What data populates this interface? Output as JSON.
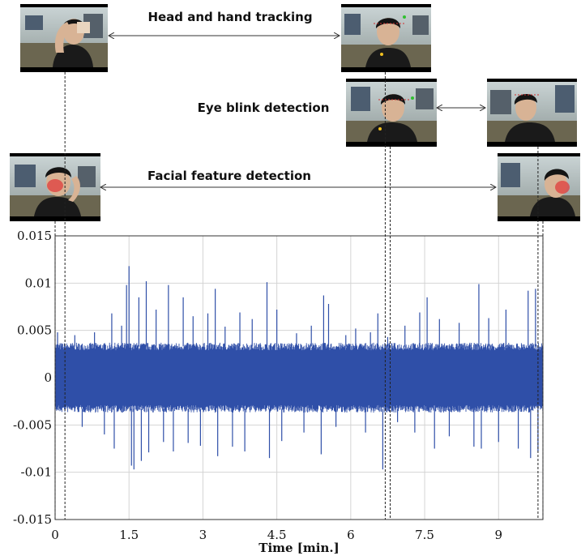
{
  "annotations": [
    {
      "label": "Head and hand tracking",
      "start_min": 0.2,
      "end_min": 6.7
    },
    {
      "label": "Eye blink detection",
      "start_min": 6.8,
      "end_min": 9.8
    },
    {
      "label": "Facial feature detection",
      "start_min": 0.0,
      "end_min": 9.9
    }
  ],
  "chart_data": {
    "type": "line",
    "title": "",
    "xlabel": "Time [min.]",
    "ylabel": "",
    "xlim": [
      0,
      9.9
    ],
    "ylim": [
      -0.015,
      0.015
    ],
    "xticks": [
      0,
      1.5,
      3,
      4.5,
      6,
      7.5,
      9
    ],
    "xtick_labels": [
      "0",
      "1.5",
      "3",
      "4.5",
      "6",
      "7.5",
      "9"
    ],
    "yticks": [
      0.015,
      0.01,
      0.005,
      0,
      -0.005,
      -0.01,
      -0.015
    ],
    "ytick_labels": [
      "0.015",
      "0.01",
      "0.005",
      "0",
      "-0.005",
      "-0.01",
      "-0.015"
    ],
    "grid": true,
    "series_color": "#2f4fa8",
    "series": [
      {
        "baseline_band": [
          -0.0033,
          0.0033
        ],
        "spikes": [
          {
            "x": 0.05,
            "y": 0.0048
          },
          {
            "x": 0.4,
            "y": 0.0045
          },
          {
            "x": 0.55,
            "y": -0.0052
          },
          {
            "x": 0.8,
            "y": 0.0048
          },
          {
            "x": 1.0,
            "y": -0.006
          },
          {
            "x": 1.15,
            "y": 0.0068
          },
          {
            "x": 1.2,
            "y": -0.0075
          },
          {
            "x": 1.35,
            "y": 0.0055
          },
          {
            "x": 1.45,
            "y": 0.0098
          },
          {
            "x": 1.5,
            "y": 0.0118
          },
          {
            "x": 1.55,
            "y": -0.0093
          },
          {
            "x": 1.6,
            "y": -0.0097
          },
          {
            "x": 1.7,
            "y": 0.0085
          },
          {
            "x": 1.75,
            "y": -0.0088
          },
          {
            "x": 1.85,
            "y": 0.0102
          },
          {
            "x": 1.9,
            "y": -0.0079
          },
          {
            "x": 2.05,
            "y": 0.0072
          },
          {
            "x": 2.2,
            "y": -0.0068
          },
          {
            "x": 2.3,
            "y": 0.0098
          },
          {
            "x": 2.4,
            "y": -0.0078
          },
          {
            "x": 2.6,
            "y": 0.0085
          },
          {
            "x": 2.7,
            "y": -0.0069
          },
          {
            "x": 2.8,
            "y": 0.0065
          },
          {
            "x": 2.95,
            "y": -0.0072
          },
          {
            "x": 3.1,
            "y": 0.0068
          },
          {
            "x": 3.25,
            "y": 0.0094
          },
          {
            "x": 3.3,
            "y": -0.0083
          },
          {
            "x": 3.45,
            "y": 0.0054
          },
          {
            "x": 3.6,
            "y": -0.0073
          },
          {
            "x": 3.75,
            "y": 0.0069
          },
          {
            "x": 3.85,
            "y": -0.0078
          },
          {
            "x": 4.0,
            "y": 0.0062
          },
          {
            "x": 4.3,
            "y": 0.0101
          },
          {
            "x": 4.35,
            "y": -0.0085
          },
          {
            "x": 4.5,
            "y": 0.0072
          },
          {
            "x": 4.6,
            "y": -0.0067
          },
          {
            "x": 4.9,
            "y": 0.0047
          },
          {
            "x": 5.05,
            "y": -0.0058
          },
          {
            "x": 5.2,
            "y": 0.0055
          },
          {
            "x": 5.4,
            "y": -0.0081
          },
          {
            "x": 5.45,
            "y": 0.0087
          },
          {
            "x": 5.55,
            "y": 0.0078
          },
          {
            "x": 5.7,
            "y": -0.0052
          },
          {
            "x": 5.9,
            "y": 0.0045
          },
          {
            "x": 6.1,
            "y": 0.0052
          },
          {
            "x": 6.3,
            "y": -0.0058
          },
          {
            "x": 6.4,
            "y": 0.0048
          },
          {
            "x": 6.55,
            "y": 0.0068
          },
          {
            "x": 6.65,
            "y": -0.0097
          },
          {
            "x": 6.75,
            "y": 0.0043
          },
          {
            "x": 6.95,
            "y": -0.0047
          },
          {
            "x": 7.1,
            "y": 0.0055
          },
          {
            "x": 7.3,
            "y": -0.0058
          },
          {
            "x": 7.4,
            "y": 0.0069
          },
          {
            "x": 7.55,
            "y": 0.0085
          },
          {
            "x": 7.7,
            "y": -0.0075
          },
          {
            "x": 7.8,
            "y": 0.0062
          },
          {
            "x": 8.0,
            "y": -0.0062
          },
          {
            "x": 8.2,
            "y": 0.0058
          },
          {
            "x": 8.5,
            "y": -0.0073
          },
          {
            "x": 8.6,
            "y": 0.0099
          },
          {
            "x": 8.65,
            "y": -0.0075
          },
          {
            "x": 8.8,
            "y": 0.0063
          },
          {
            "x": 9.0,
            "y": -0.0068
          },
          {
            "x": 9.15,
            "y": 0.0072
          },
          {
            "x": 9.4,
            "y": -0.0075
          },
          {
            "x": 9.6,
            "y": 0.0092
          },
          {
            "x": 9.65,
            "y": -0.0085
          },
          {
            "x": 9.75,
            "y": 0.0094
          },
          {
            "x": 9.8,
            "y": -0.0078
          }
        ]
      }
    ]
  }
}
